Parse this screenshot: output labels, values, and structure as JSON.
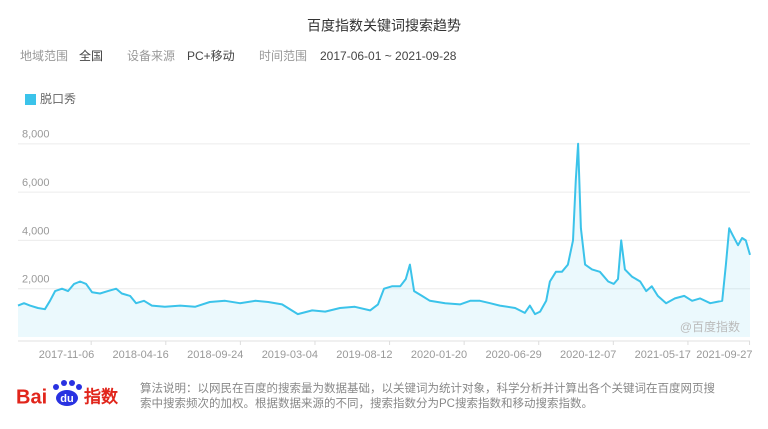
{
  "chart_data": {
    "type": "line",
    "title": "百度指数关键词搜索趋势",
    "x": [
      "2017-06-01",
      "2017-06-14",
      "2017-06-27",
      "2017-07-14",
      "2017-07-29",
      "2017-08-09",
      "2017-08-20",
      "2017-09-04",
      "2017-09-17",
      "2017-09-30",
      "2017-10-13",
      "2017-10-26",
      "2017-11-08",
      "2017-11-25",
      "2017-12-12",
      "2017-12-30",
      "2018-01-11",
      "2018-01-29",
      "2018-02-11",
      "2018-02-28",
      "2018-03-17",
      "2018-04-14",
      "2018-05-17",
      "2018-06-18",
      "2018-07-20",
      "2018-08-22",
      "2018-09-23",
      "2018-10-26",
      "2018-11-23",
      "2018-12-23",
      "2019-01-26",
      "2019-02-26",
      "2019-03-26",
      "2019-04-27",
      "2019-05-29",
      "2019-07-01",
      "2019-07-18",
      "2019-07-31",
      "2019-08-17",
      "2019-09-04",
      "2019-09-16",
      "2019-09-25",
      "2019-10-04",
      "2019-10-21",
      "2019-11-07",
      "2019-12-10",
      "2020-01-11",
      "2020-02-02",
      "2020-02-23",
      "2020-03-16",
      "2020-04-06",
      "2020-05-09",
      "2020-05-30",
      "2020-06-10",
      "2020-06-21",
      "2020-07-02",
      "2020-07-15",
      "2020-07-23",
      "2020-08-05",
      "2020-08-18",
      "2020-08-31",
      "2020-09-11",
      "2020-09-17",
      "2020-09-22",
      "2020-09-28",
      "2020-10-07",
      "2020-10-22",
      "2020-11-08",
      "2020-11-26",
      "2020-12-08",
      "2020-12-17",
      "2020-12-24",
      "2021-01-01",
      "2021-01-16",
      "2021-02-03",
      "2021-02-16",
      "2021-02-28",
      "2021-03-13",
      "2021-03-31",
      "2021-04-19",
      "2021-05-09",
      "2021-05-26",
      "2021-06-12",
      "2021-07-04",
      "2021-07-17",
      "2021-07-30",
      "2021-08-07",
      "2021-08-14",
      "2021-08-22",
      "2021-09-02",
      "2021-09-11",
      "2021-09-19",
      "2021-09-28"
    ],
    "series": [
      {
        "name": "脱口秀",
        "color": "#3bc3ea",
        "values": [
          1300,
          1400,
          1300,
          1200,
          1150,
          1500,
          1900,
          2000,
          1900,
          2200,
          2300,
          2200,
          1850,
          1800,
          1900,
          2000,
          1800,
          1700,
          1400,
          1500,
          1300,
          1250,
          1300,
          1250,
          1450,
          1500,
          1400,
          1500,
          1450,
          1350,
          950,
          1100,
          1050,
          1200,
          1250,
          1100,
          1350,
          2000,
          2100,
          2100,
          2400,
          3000,
          1900,
          1700,
          1500,
          1400,
          1350,
          1500,
          1500,
          1400,
          1300,
          1200,
          1000,
          1300,
          950,
          1050,
          1500,
          2300,
          2700,
          2700,
          3000,
          4000,
          6500,
          8000,
          4500,
          3000,
          2800,
          2700,
          2300,
          2200,
          2400,
          4000,
          2800,
          2500,
          2300,
          1900,
          2100,
          1700,
          1400,
          1600,
          1700,
          1500,
          1600,
          1400,
          1450,
          1500,
          3000,
          4500,
          4200,
          3800,
          4100,
          4000,
          3400
        ]
      }
    ],
    "xlim": [
      "2017-06-01",
      "2021-09-28"
    ],
    "xticks": [
      "2017-11-06",
      "2018-04-16",
      "2018-09-24",
      "2019-03-04",
      "2019-08-12",
      "2020-01-20",
      "2020-06-29",
      "2020-12-07",
      "2021-05-17",
      "2021-09-27"
    ],
    "ylim": [
      0,
      8800
    ],
    "yticks": [
      {
        "value": 2000,
        "label": "2,000"
      },
      {
        "value": 4000,
        "label": "4,000"
      },
      {
        "value": 6000,
        "label": "6,000"
      },
      {
        "value": 8000,
        "label": "8,000"
      }
    ],
    "grid": true,
    "watermark": "@百度指数"
  },
  "filters": [
    {
      "label": "地域范围",
      "value": "全国"
    },
    {
      "label": "设备来源",
      "value": "PC+移动"
    },
    {
      "label": "时间范围",
      "value": "2017-06-01 ~ 2021-09-28"
    }
  ],
  "footer": {
    "logo": [
      "Bai",
      "du",
      "指数"
    ],
    "lines": [
      "算法说明：以网民在百度的搜索量为数据基础，以关键词为统计对象，科学分析并计算出各个关键词在百度网页搜",
      "索中搜索频次的加权。根据数据来源的不同，搜索指数分为PC搜索指数和移动搜索指数。"
    ]
  }
}
